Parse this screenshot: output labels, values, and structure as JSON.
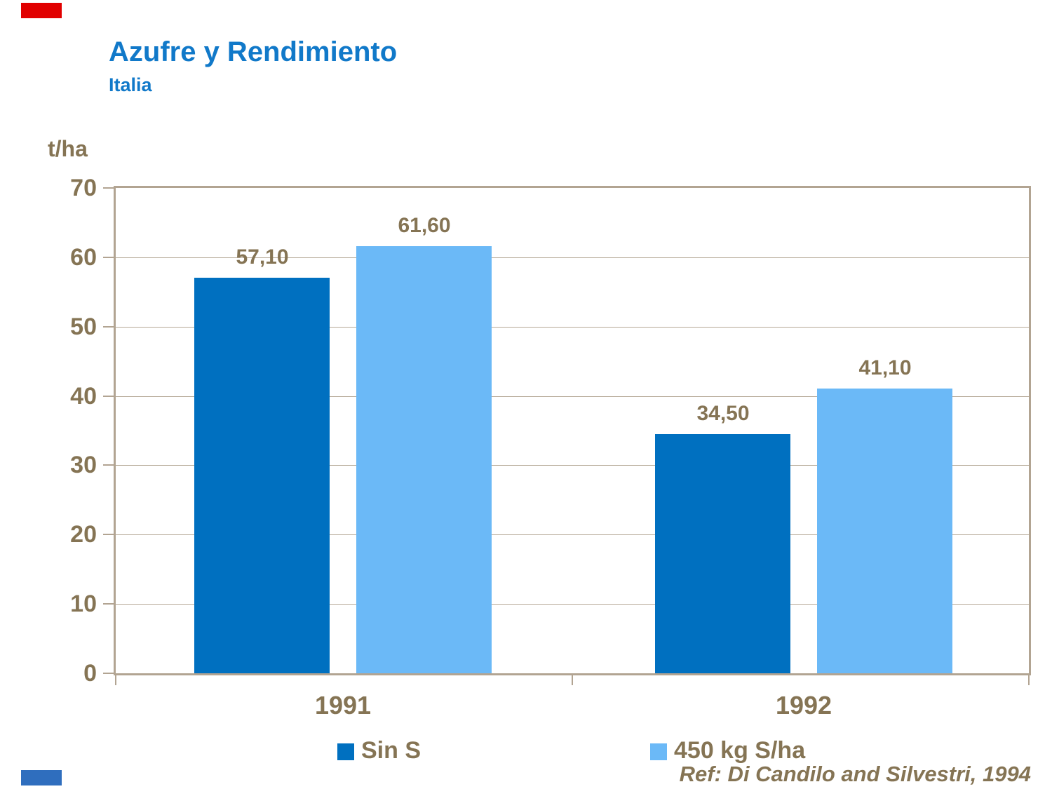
{
  "slide": {
    "title": "Azufre y Rendimiento",
    "subtitle": "Italia",
    "reference": "Ref: Di Candilo and Silvestri, 1994",
    "accent_top_left_color": "#e10000",
    "accent_bottom_left_color": "#2f6ebe"
  },
  "colors": {
    "title_blue": "#1179c9",
    "text_brown": "#857454",
    "axis_tan": "#b2a492",
    "gridline_tan": "#b5a896",
    "series_dark_blue": "#0070c0",
    "series_light_blue": "#6bb9f7"
  },
  "chart_data": {
    "type": "bar",
    "title": "Azufre y Rendimiento",
    "subtitle": "Italia",
    "unit_label": "t/ha",
    "xlabel": "",
    "ylabel": "t/ha",
    "categories": [
      "1991",
      "1992"
    ],
    "series": [
      {
        "name": "Sin S",
        "color": "#0070c0",
        "values": [
          57.1,
          34.5
        ],
        "labels": [
          "57,10",
          "34,50"
        ]
      },
      {
        "name": "450 kg S/ha",
        "color": "#6bb9f7",
        "values": [
          61.6,
          41.1
        ],
        "labels": [
          "61,60",
          "41,10"
        ]
      }
    ],
    "ylim": [
      0,
      70
    ],
    "yticks": [
      0,
      10,
      20,
      30,
      40,
      50,
      60,
      70
    ],
    "grid": true,
    "legend_position": "bottom",
    "annotation": "Ref: Di Candilo and Silvestri, 1994"
  }
}
